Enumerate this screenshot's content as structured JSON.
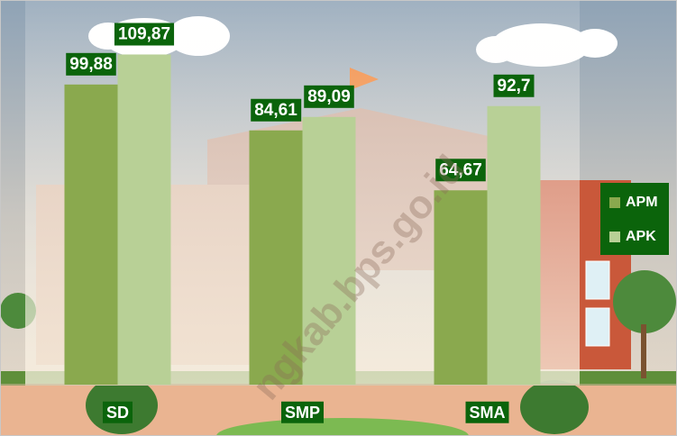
{
  "chart_data": {
    "type": "bar",
    "categories": [
      "SD",
      "SMP",
      "SMA"
    ],
    "series": [
      {
        "name": "APM",
        "color": "#8aa94e",
        "values": [
          99.88,
          84.61,
          64.67
        ],
        "value_labels": [
          "99,88",
          "84,61",
          "64,67"
        ]
      },
      {
        "name": "APK",
        "color": "#b8d096",
        "values": [
          109.87,
          89.09,
          92.7
        ],
        "value_labels": [
          "109,87",
          "89,09",
          "92,7"
        ]
      }
    ],
    "ylim": [
      0,
      128
    ],
    "legend": "right",
    "label_color": "#0b640b",
    "watermark": "ngkab.bps.go.id"
  }
}
